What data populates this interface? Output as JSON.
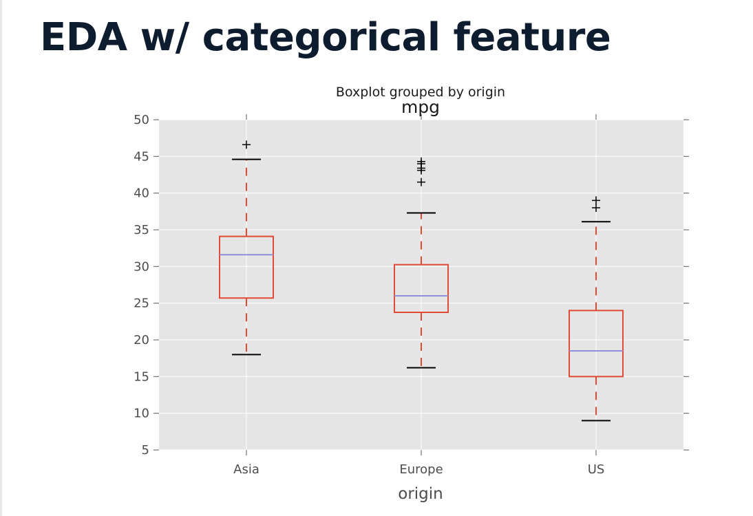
{
  "slide": {
    "title": "EDA w/ categorical feature"
  },
  "chart_data": {
    "type": "boxplot",
    "suptitle": "Boxplot grouped by origin",
    "title": "mpg",
    "xlabel": "origin",
    "ylabel": "",
    "ylim": [
      5,
      50
    ],
    "yticks": [
      5,
      10,
      15,
      20,
      25,
      30,
      35,
      40,
      45,
      50
    ],
    "grid": true,
    "categories": [
      "Asia",
      "Europe",
      "US"
    ],
    "boxes": [
      {
        "category": "Asia",
        "whisker_low": 18.0,
        "q1": 25.7,
        "median": 31.6,
        "q3": 34.1,
        "whisker_high": 44.6,
        "outliers": [
          46.6
        ]
      },
      {
        "category": "Europe",
        "whisker_low": 16.2,
        "q1": 23.75,
        "median": 26.0,
        "q3": 30.25,
        "whisker_high": 37.3,
        "outliers": [
          41.5,
          43.1,
          43.4,
          44.0,
          44.3
        ]
      },
      {
        "category": "US",
        "whisker_low": 9.0,
        "q1": 15.0,
        "median": 18.5,
        "q3": 24.0,
        "whisker_high": 36.1,
        "outliers": [
          38.0,
          39.0
        ]
      }
    ],
    "colors": {
      "plot_background": "#e5e5e5",
      "grid": "#ffffff",
      "box": "#e24a33",
      "whisker": "#e24a33",
      "median": "#8e8edb",
      "caps": "#000000",
      "outliers": "#000000"
    }
  }
}
